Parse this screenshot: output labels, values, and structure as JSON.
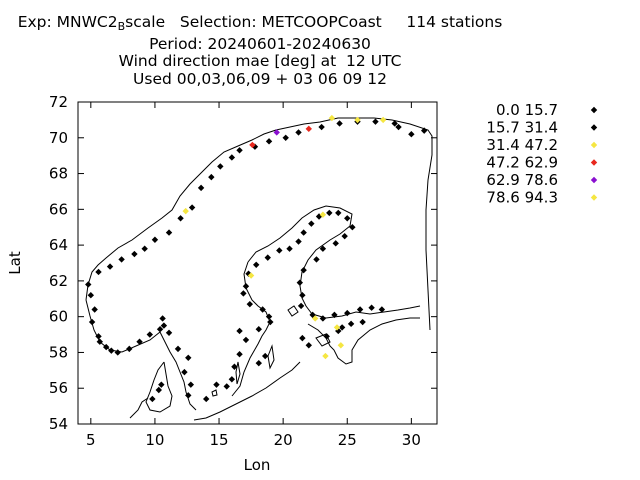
{
  "title": {
    "line1_prefix": "Exp: MNWC2",
    "line1_sub": "B",
    "line1_suffix": "scale   Selection: METCOOPCoast     114 stations",
    "line2": "Period: 20240601-20240630",
    "line3": "Wind direction mae [deg] at  12 UTC",
    "line4": "Used 00,03,06,09 + 03 06 09 12"
  },
  "chart_data": {
    "type": "scatter",
    "xlabel": "Lon",
    "ylabel": "Lat",
    "xlim": [
      4,
      32
    ],
    "ylim": [
      54,
      72
    ],
    "xticks": [
      5,
      10,
      15,
      20,
      25,
      30
    ],
    "yticks": [
      54,
      56,
      58,
      60,
      62,
      64,
      66,
      68,
      70,
      72
    ],
    "grid": false,
    "legend_position": "right",
    "legend": [
      {
        "label": "0.0 15.7",
        "color": "#000000"
      },
      {
        "label": "15.7 31.4",
        "color": "#000000"
      },
      {
        "label": "31.4 47.2",
        "color": "#f5e642"
      },
      {
        "label": "47.2 62.9",
        "color": "#e8281e"
      },
      {
        "label": "62.9 78.6",
        "color": "#8a10d0"
      },
      {
        "label": "78.6 94.3",
        "color": "#f5e642"
      }
    ],
    "series": [
      {
        "bin": 0,
        "points": [
          [
            4.8,
            61.8
          ],
          [
            5.0,
            61.2
          ],
          [
            5.3,
            60.4
          ],
          [
            5.1,
            59.7
          ],
          [
            5.6,
            58.9
          ],
          [
            5.7,
            58.6
          ],
          [
            6.2,
            58.3
          ],
          [
            6.6,
            58.1
          ],
          [
            7.1,
            58.0
          ],
          [
            8.0,
            58.2
          ],
          [
            8.8,
            58.6
          ],
          [
            9.6,
            59.0
          ],
          [
            10.4,
            59.3
          ],
          [
            10.7,
            59.5
          ],
          [
            10.6,
            59.9
          ],
          [
            11.1,
            59.1
          ],
          [
            11.8,
            58.2
          ],
          [
            12.6,
            57.7
          ],
          [
            12.3,
            56.9
          ],
          [
            12.8,
            56.2
          ],
          [
            12.6,
            55.6
          ],
          [
            14.0,
            55.4
          ],
          [
            10.3,
            55.9
          ],
          [
            9.8,
            55.4
          ],
          [
            10.5,
            56.2
          ],
          [
            5.6,
            62.5
          ],
          [
            6.5,
            62.8
          ],
          [
            7.4,
            63.2
          ],
          [
            8.4,
            63.5
          ],
          [
            9.2,
            63.8
          ],
          [
            10.0,
            64.3
          ],
          [
            11.1,
            64.7
          ],
          [
            12.0,
            65.5
          ],
          [
            12.9,
            66.1
          ],
          [
            13.6,
            67.2
          ],
          [
            14.4,
            67.8
          ],
          [
            15.1,
            68.4
          ],
          [
            16.0,
            68.9
          ],
          [
            16.6,
            69.3
          ],
          [
            17.8,
            69.5
          ],
          [
            18.9,
            69.8
          ],
          [
            20.2,
            70.0
          ],
          [
            21.2,
            70.3
          ],
          [
            23.0,
            70.6
          ],
          [
            24.4,
            70.8
          ],
          [
            25.8,
            70.9
          ],
          [
            27.2,
            70.9
          ],
          [
            29.0,
            70.6
          ],
          [
            30.0,
            70.2
          ],
          [
            31.0,
            70.4
          ],
          [
            28.7,
            70.8
          ],
          [
            17.1,
            61.7
          ],
          [
            17.3,
            62.4
          ],
          [
            17.9,
            62.9
          ],
          [
            18.8,
            63.3
          ],
          [
            19.7,
            63.7
          ],
          [
            20.5,
            63.8
          ],
          [
            21.2,
            64.2
          ],
          [
            21.6,
            64.7
          ],
          [
            22.2,
            65.2
          ],
          [
            22.8,
            65.6
          ],
          [
            23.6,
            65.8
          ],
          [
            24.3,
            65.8
          ],
          [
            25.0,
            65.5
          ],
          [
            25.4,
            65.0
          ],
          [
            24.8,
            64.5
          ],
          [
            24.1,
            64.1
          ],
          [
            23.1,
            63.8
          ],
          [
            22.6,
            63.2
          ],
          [
            21.6,
            62.6
          ],
          [
            21.3,
            61.9
          ],
          [
            21.5,
            61.2
          ],
          [
            21.4,
            60.6
          ],
          [
            22.3,
            60.1
          ],
          [
            23.1,
            59.9
          ],
          [
            24.0,
            60.1
          ],
          [
            25.0,
            60.2
          ],
          [
            26.0,
            60.4
          ],
          [
            26.9,
            60.5
          ],
          [
            27.7,
            60.4
          ],
          [
            18.4,
            60.4
          ],
          [
            18.9,
            60.0
          ],
          [
            17.4,
            60.7
          ],
          [
            16.9,
            61.3
          ],
          [
            16.6,
            59.2
          ],
          [
            17.1,
            58.7
          ],
          [
            16.6,
            57.9
          ],
          [
            16.2,
            57.2
          ],
          [
            16.0,
            56.5
          ],
          [
            14.8,
            56.2
          ],
          [
            15.6,
            56.1
          ],
          [
            18.1,
            59.3
          ],
          [
            19.0,
            59.7
          ],
          [
            18.6,
            57.8
          ],
          [
            18.1,
            57.4
          ],
          [
            21.5,
            58.8
          ],
          [
            22.0,
            58.4
          ],
          [
            23.4,
            58.9
          ],
          [
            24.3,
            59.2
          ],
          [
            25.3,
            59.6
          ],
          [
            26.2,
            59.7
          ],
          [
            24.6,
            59.4
          ]
        ]
      },
      {
        "bin": 2,
        "points": [
          [
            12.4,
            65.9
          ],
          [
            17.5,
            62.3
          ],
          [
            22.5,
            59.9
          ],
          [
            23.1,
            65.7
          ],
          [
            23.8,
            71.1
          ],
          [
            24.2,
            59.4
          ],
          [
            23.3,
            57.8
          ],
          [
            24.5,
            58.4
          ],
          [
            25.8,
            71.0
          ],
          [
            27.8,
            71.0
          ]
        ]
      },
      {
        "bin": 3,
        "points": [
          [
            17.6,
            69.6
          ],
          [
            22.0,
            70.5
          ]
        ]
      },
      {
        "bin": 4,
        "points": [
          [
            19.5,
            70.3
          ]
        ]
      }
    ]
  }
}
